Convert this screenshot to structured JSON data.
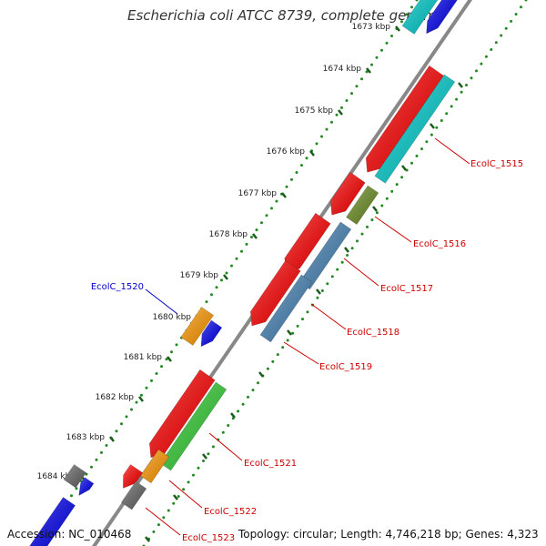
{
  "title": "Escherichia coli ATCC 8739, complete genome",
  "ticks": [
    "1673 kbp",
    "1674 kbp",
    "1675 kbp",
    "1676 kbp",
    "1677 kbp",
    "1678 kbp",
    "1679 kbp",
    "1680 kbp",
    "1681 kbp",
    "1682 kbp",
    "1683 kbp",
    "1684 kbp"
  ],
  "gene_labels": [
    {
      "text": "EcolC_1515",
      "color": "#cc0000"
    },
    {
      "text": "EcolC_1516",
      "color": "#cc0000"
    },
    {
      "text": "EcolC_1517",
      "color": "#cc0000"
    },
    {
      "text": "EcolC_1518",
      "color": "#cc0000"
    },
    {
      "text": "EcolC_1519",
      "color": "#cc0000"
    },
    {
      "text": "EcolC_1520",
      "color": "#0000cc"
    },
    {
      "text": "EcolC_1521",
      "color": "#cc0000"
    },
    {
      "text": "EcolC_1522",
      "color": "#cc0000"
    },
    {
      "text": "EcolC_1523",
      "color": "#cc0000"
    }
  ],
  "footer": {
    "accession": "Accession: NC_010468",
    "topology": "Topology: circular; Length: 4,746,218 bp; Genes: 4,323"
  },
  "colors": {
    "cds_forward": "#ff0000",
    "cds_reverse_blue": "#0000ee",
    "cyan": "#00cccc",
    "olive": "#6b8e23",
    "steelblue": "#4682b4",
    "orange": "#ff9900",
    "green": "#33cc33",
    "gray": "#666666",
    "backbone": "#777777",
    "dots": "#228822"
  }
}
